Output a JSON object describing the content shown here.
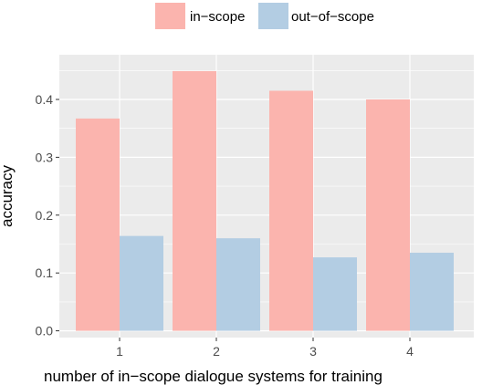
{
  "chart_data": {
    "type": "bar",
    "categories": [
      "1",
      "2",
      "3",
      "4"
    ],
    "series": [
      {
        "name": "in−scope",
        "values": [
          0.367,
          0.449,
          0.415,
          0.4
        ]
      },
      {
        "name": "out−of−scope",
        "values": [
          0.164,
          0.16,
          0.127,
          0.135
        ]
      }
    ],
    "xlabel": "number of in−scope dialogue systems for training",
    "ylabel": "accuracy",
    "ylim": [
      0,
      0.47
    ],
    "yticks": [
      0.0,
      0.1,
      0.2,
      0.3,
      0.4
    ],
    "ytick_labels": [
      "0.0",
      "0.1",
      "0.2",
      "0.3",
      "0.4"
    ],
    "grid": true,
    "legend_position": "top",
    "colors": {
      "in_scope": "#fbb4ae",
      "out_of_scope": "#b3cde3",
      "panel": "#ebebeb",
      "grid": "#ffffff"
    }
  }
}
